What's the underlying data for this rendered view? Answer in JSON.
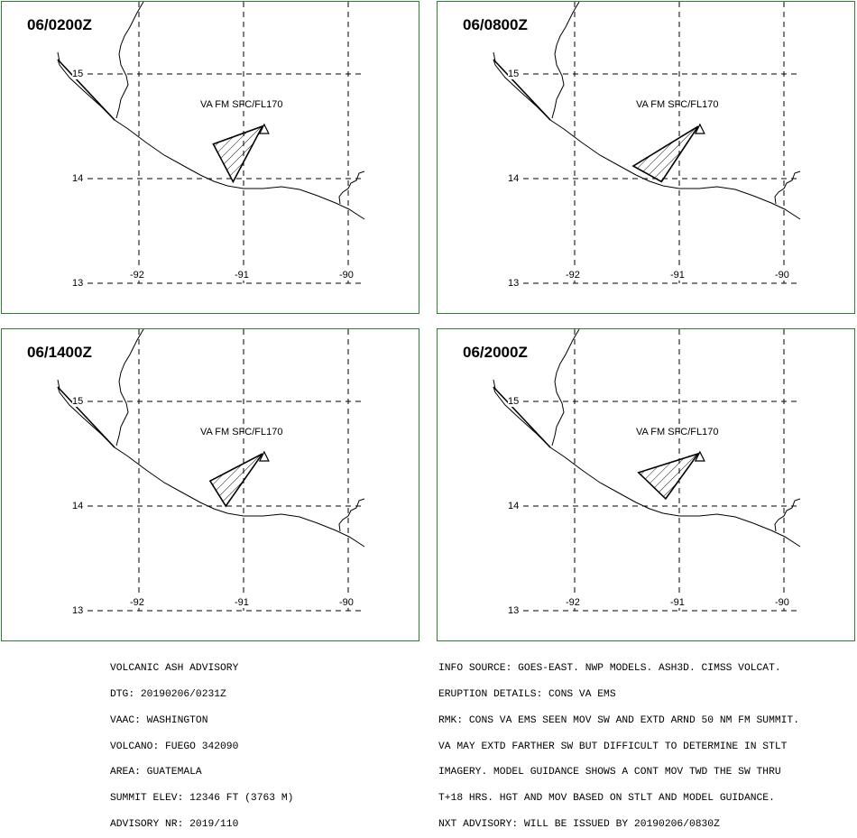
{
  "panels": [
    {
      "time": "06/0200Z",
      "label": "VA FM SFC/FL170",
      "polygon": [
        [
          -91.29,
          14.33
        ],
        [
          -90.82,
          14.5
        ],
        [
          -91.1,
          13.97
        ]
      ]
    },
    {
      "time": "06/0800Z",
      "label": "VA FM SFC/FL170",
      "polygon": [
        [
          -91.44,
          14.12
        ],
        [
          -90.82,
          14.5
        ],
        [
          -91.17,
          13.97
        ]
      ]
    },
    {
      "time": "06/1400Z",
      "label": "VA FM SFC/FL170",
      "polygon": [
        [
          -91.32,
          14.24
        ],
        [
          -90.82,
          14.5
        ],
        [
          -91.17,
          14.0
        ]
      ]
    },
    {
      "time": "06/2000Z",
      "label": "VA FM SFC/FL170",
      "polygon": [
        [
          -91.39,
          14.32
        ],
        [
          -90.82,
          14.5
        ],
        [
          -91.13,
          14.07
        ]
      ]
    }
  ],
  "axes": {
    "lat_labels": [
      "15",
      "14",
      "13"
    ],
    "lon_labels": [
      "-92",
      "-91",
      "-90"
    ]
  },
  "volcano_marker": "volcano-triangle-icon",
  "colors": {
    "panel_border": "#2e7d32"
  },
  "advisory": {
    "lines": [
      "VOLCANIC ASH ADVISORY",
      "DTG: 20190206/0231Z",
      "VAAC: WASHINGTON",
      "VOLCANO: FUEGO 342090",
      "AREA: GUATEMALA",
      "SUMMIT ELEV: 12346 FT (3763 M)",
      "ADVISORY NR: 2019/110"
    ]
  },
  "details": {
    "lines": [
      "INFO SOURCE: GOES-EAST. NWP MODELS. ASH3D. CIMSS VOLCAT.",
      "ERUPTION DETAILS: CONS VA EMS",
      "RMK: CONS VA EMS SEEN MOV SW AND EXTD ARND 50 NM FM SUMMIT.",
      "VA MAY EXTD FARTHER SW BUT DIFFICULT TO DETERMINE IN STLT",
      "IMAGERY. MODEL GUIDANCE SHOWS A CONT MOV TWD THE SW THRU",
      "T+18 HRS. HGT AND MOV BASED ON STLT AND MODEL GUIDANCE.",
      "NXT ADVISORY: WILL BE ISSUED BY 20190206/0830Z"
    ]
  }
}
